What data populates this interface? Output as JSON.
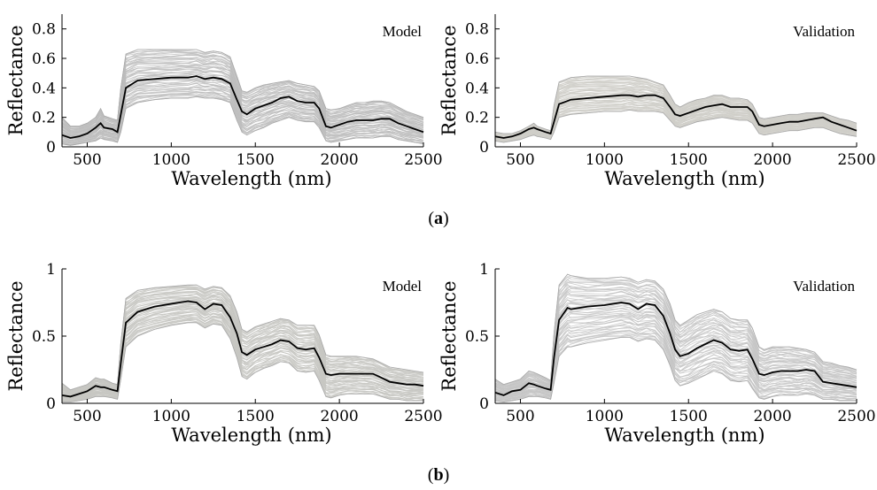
{
  "captions": {
    "a": "a",
    "b": "b"
  },
  "chart_data": [
    {
      "type": "line",
      "panel": "a",
      "title": "Model",
      "xlabel": "Wavelength (nm)",
      "ylabel": "Reflectance",
      "xlim": [
        350,
        2500
      ],
      "ylim": [
        0,
        0.9
      ],
      "xticks": [
        500,
        1000,
        1500,
        2000,
        2500
      ],
      "yticks": [
        0,
        0.2,
        0.4,
        0.6,
        0.8
      ],
      "ytick_labels": [
        "0",
        "0.2",
        "0.4",
        "0.6",
        "0.8"
      ],
      "band_color": "#bdbdbd",
      "band_opacity": 0.85,
      "mean_color": "#000000",
      "x": [
        350,
        400,
        450,
        500,
        550,
        580,
        600,
        650,
        680,
        700,
        730,
        800,
        900,
        1000,
        1100,
        1150,
        1200,
        1250,
        1300,
        1350,
        1390,
        1420,
        1450,
        1500,
        1550,
        1600,
        1650,
        1700,
        1750,
        1800,
        1850,
        1880,
        1920,
        1950,
        2000,
        2050,
        2100,
        2150,
        2200,
        2250,
        2300,
        2350,
        2400,
        2450,
        2500
      ],
      "series": [
        {
          "values": [
            0.08,
            0.06,
            0.07,
            0.09,
            0.13,
            0.16,
            0.13,
            0.12,
            0.1,
            0.22,
            0.4,
            0.45,
            0.46,
            0.47,
            0.47,
            0.48,
            0.46,
            0.47,
            0.46,
            0.43,
            0.32,
            0.24,
            0.22,
            0.26,
            0.28,
            0.3,
            0.33,
            0.34,
            0.31,
            0.3,
            0.3,
            0.26,
            0.14,
            0.13,
            0.15,
            0.17,
            0.18,
            0.18,
            0.18,
            0.19,
            0.19,
            0.16,
            0.14,
            0.12,
            0.1
          ]
        },
        {
          "values": [
            0.2,
            0.14,
            0.14,
            0.16,
            0.2,
            0.26,
            0.21,
            0.19,
            0.18,
            0.4,
            0.63,
            0.66,
            0.66,
            0.66,
            0.66,
            0.66,
            0.64,
            0.65,
            0.64,
            0.61,
            0.48,
            0.38,
            0.37,
            0.4,
            0.42,
            0.43,
            0.44,
            0.45,
            0.43,
            0.42,
            0.41,
            0.38,
            0.26,
            0.25,
            0.26,
            0.28,
            0.3,
            0.3,
            0.31,
            0.31,
            0.3,
            0.27,
            0.24,
            0.22,
            0.2
          ]
        },
        {
          "values": [
            0.02,
            0.01,
            0.02,
            0.03,
            0.04,
            0.06,
            0.05,
            0.04,
            0.03,
            0.1,
            0.26,
            0.3,
            0.32,
            0.33,
            0.33,
            0.34,
            0.33,
            0.33,
            0.32,
            0.3,
            0.18,
            0.1,
            0.08,
            0.11,
            0.13,
            0.16,
            0.18,
            0.2,
            0.18,
            0.17,
            0.17,
            0.13,
            0.04,
            0.03,
            0.04,
            0.05,
            0.06,
            0.06,
            0.06,
            0.07,
            0.07,
            0.05,
            0.04,
            0.03,
            0.02
          ]
        }
      ]
    },
    {
      "type": "line",
      "panel": "a",
      "title": "Validation",
      "xlabel": "Wavelength (nm)",
      "ylabel": "Reflectance",
      "xlim": [
        350,
        2500
      ],
      "ylim": [
        0,
        0.9
      ],
      "xticks": [
        500,
        1000,
        1500,
        2000,
        2500
      ],
      "yticks": [
        0,
        0.2,
        0.4,
        0.6,
        0.8
      ],
      "ytick_labels": [
        "0",
        "0.2",
        "0.4",
        "0.6",
        "0.8"
      ],
      "band_color": "#cfcec9",
      "band_opacity": 0.9,
      "mean_color": "#000000",
      "x": [
        350,
        400,
        450,
        500,
        550,
        580,
        600,
        650,
        680,
        700,
        730,
        800,
        900,
        1000,
        1100,
        1150,
        1200,
        1250,
        1300,
        1350,
        1390,
        1420,
        1450,
        1500,
        1550,
        1600,
        1650,
        1700,
        1750,
        1800,
        1850,
        1880,
        1920,
        1950,
        2000,
        2050,
        2100,
        2150,
        2200,
        2250,
        2300,
        2350,
        2400,
        2450,
        2500
      ],
      "series": [
        {
          "values": [
            0.07,
            0.06,
            0.07,
            0.09,
            0.12,
            0.13,
            0.12,
            0.1,
            0.09,
            0.17,
            0.29,
            0.32,
            0.33,
            0.34,
            0.35,
            0.35,
            0.34,
            0.35,
            0.35,
            0.33,
            0.27,
            0.22,
            0.21,
            0.23,
            0.25,
            0.27,
            0.28,
            0.29,
            0.27,
            0.27,
            0.27,
            0.24,
            0.15,
            0.14,
            0.15,
            0.16,
            0.17,
            0.17,
            0.18,
            0.19,
            0.2,
            0.17,
            0.15,
            0.13,
            0.11
          ]
        },
        {
          "values": [
            0.1,
            0.09,
            0.09,
            0.11,
            0.14,
            0.16,
            0.14,
            0.12,
            0.11,
            0.28,
            0.44,
            0.47,
            0.48,
            0.48,
            0.48,
            0.48,
            0.47,
            0.46,
            0.44,
            0.42,
            0.35,
            0.29,
            0.27,
            0.3,
            0.32,
            0.33,
            0.35,
            0.35,
            0.33,
            0.33,
            0.32,
            0.29,
            0.2,
            0.19,
            0.2,
            0.21,
            0.22,
            0.22,
            0.23,
            0.23,
            0.23,
            0.21,
            0.19,
            0.18,
            0.16
          ]
        },
        {
          "values": [
            0.04,
            0.03,
            0.04,
            0.05,
            0.07,
            0.08,
            0.07,
            0.06,
            0.05,
            0.1,
            0.2,
            0.22,
            0.23,
            0.24,
            0.24,
            0.25,
            0.24,
            0.24,
            0.24,
            0.23,
            0.18,
            0.14,
            0.13,
            0.15,
            0.17,
            0.18,
            0.19,
            0.2,
            0.19,
            0.18,
            0.18,
            0.16,
            0.09,
            0.08,
            0.09,
            0.1,
            0.11,
            0.11,
            0.12,
            0.13,
            0.13,
            0.11,
            0.09,
            0.08,
            0.07
          ]
        }
      ]
    },
    {
      "type": "line",
      "panel": "b",
      "title": "Model",
      "xlabel": "Wavelength (nm)",
      "ylabel": "Reflectance",
      "xlim": [
        350,
        2500
      ],
      "ylim": [
        0,
        1
      ],
      "xticks": [
        500,
        1000,
        1500,
        2000,
        2500
      ],
      "yticks": [
        0,
        0.5,
        1
      ],
      "ytick_labels": [
        "0",
        "0.5",
        "1"
      ],
      "band_color": "#c7c6c2",
      "band_opacity": 0.9,
      "mean_color": "#000000",
      "x": [
        350,
        400,
        450,
        500,
        550,
        580,
        600,
        650,
        680,
        700,
        730,
        800,
        900,
        1000,
        1100,
        1150,
        1200,
        1250,
        1300,
        1350,
        1390,
        1420,
        1450,
        1500,
        1550,
        1600,
        1650,
        1700,
        1750,
        1800,
        1850,
        1880,
        1920,
        1950,
        2000,
        2050,
        2100,
        2150,
        2200,
        2250,
        2300,
        2350,
        2400,
        2450,
        2500
      ],
      "series": [
        {
          "values": [
            0.06,
            0.05,
            0.07,
            0.09,
            0.13,
            0.12,
            0.12,
            0.1,
            0.09,
            0.3,
            0.6,
            0.68,
            0.72,
            0.74,
            0.76,
            0.75,
            0.7,
            0.74,
            0.73,
            0.64,
            0.52,
            0.38,
            0.36,
            0.4,
            0.42,
            0.44,
            0.47,
            0.46,
            0.41,
            0.4,
            0.41,
            0.34,
            0.22,
            0.21,
            0.22,
            0.22,
            0.22,
            0.22,
            0.22,
            0.19,
            0.16,
            0.15,
            0.14,
            0.14,
            0.13
          ]
        },
        {
          "values": [
            0.15,
            0.1,
            0.12,
            0.14,
            0.19,
            0.18,
            0.18,
            0.15,
            0.14,
            0.45,
            0.78,
            0.84,
            0.86,
            0.87,
            0.88,
            0.88,
            0.85,
            0.87,
            0.86,
            0.8,
            0.68,
            0.55,
            0.53,
            0.57,
            0.59,
            0.61,
            0.63,
            0.62,
            0.58,
            0.58,
            0.58,
            0.51,
            0.36,
            0.35,
            0.35,
            0.35,
            0.35,
            0.34,
            0.33,
            0.3,
            0.27,
            0.26,
            0.25,
            0.24,
            0.23
          ]
        },
        {
          "values": [
            0.01,
            0.01,
            0.02,
            0.03,
            0.05,
            0.05,
            0.05,
            0.04,
            0.03,
            0.18,
            0.42,
            0.5,
            0.55,
            0.58,
            0.6,
            0.6,
            0.56,
            0.59,
            0.58,
            0.48,
            0.34,
            0.2,
            0.18,
            0.23,
            0.26,
            0.28,
            0.31,
            0.3,
            0.24,
            0.23,
            0.24,
            0.17,
            0.05,
            0.04,
            0.06,
            0.07,
            0.07,
            0.07,
            0.07,
            0.05,
            0.03,
            0.03,
            0.02,
            0.02,
            0.02
          ]
        }
      ]
    },
    {
      "type": "line",
      "panel": "b",
      "title": "Validation",
      "xlabel": "Wavelength (nm)",
      "ylabel": "Reflectance",
      "xlim": [
        350,
        2500
      ],
      "ylim": [
        0,
        1
      ],
      "xticks": [
        500,
        1000,
        1500,
        2000,
        2500
      ],
      "yticks": [
        0,
        0.5,
        1
      ],
      "ytick_labels": [
        "0",
        "0.5",
        "1"
      ],
      "band_color": "#c4c4c4",
      "band_opacity": 0.85,
      "mean_color": "#000000",
      "x": [
        350,
        400,
        450,
        500,
        550,
        580,
        600,
        650,
        680,
        700,
        730,
        780,
        800,
        900,
        1000,
        1100,
        1150,
        1200,
        1250,
        1300,
        1350,
        1390,
        1420,
        1450,
        1500,
        1550,
        1600,
        1650,
        1700,
        1750,
        1800,
        1850,
        1880,
        1920,
        1950,
        2000,
        2050,
        2100,
        2150,
        2200,
        2250,
        2300,
        2350,
        2400,
        2450,
        2500
      ],
      "series": [
        {
          "values": [
            0.08,
            0.06,
            0.09,
            0.1,
            0.15,
            0.14,
            0.13,
            0.11,
            0.1,
            0.34,
            0.62,
            0.71,
            0.7,
            0.72,
            0.73,
            0.75,
            0.74,
            0.7,
            0.74,
            0.73,
            0.65,
            0.52,
            0.4,
            0.35,
            0.37,
            0.41,
            0.44,
            0.47,
            0.45,
            0.4,
            0.39,
            0.4,
            0.33,
            0.22,
            0.21,
            0.23,
            0.24,
            0.24,
            0.24,
            0.25,
            0.24,
            0.16,
            0.15,
            0.14,
            0.13,
            0.12
          ]
        },
        {
          "values": [
            0.18,
            0.14,
            0.16,
            0.18,
            0.24,
            0.23,
            0.22,
            0.19,
            0.17,
            0.52,
            0.88,
            0.96,
            0.95,
            0.93,
            0.93,
            0.94,
            0.93,
            0.9,
            0.92,
            0.91,
            0.85,
            0.74,
            0.62,
            0.58,
            0.62,
            0.66,
            0.68,
            0.7,
            0.68,
            0.63,
            0.62,
            0.62,
            0.56,
            0.42,
            0.4,
            0.42,
            0.42,
            0.42,
            0.41,
            0.4,
            0.38,
            0.31,
            0.3,
            0.28,
            0.27,
            0.25
          ]
        },
        {
          "values": [
            0.02,
            0.01,
            0.02,
            0.03,
            0.05,
            0.05,
            0.05,
            0.04,
            0.03,
            0.15,
            0.35,
            0.42,
            0.42,
            0.45,
            0.47,
            0.49,
            0.49,
            0.46,
            0.48,
            0.47,
            0.4,
            0.28,
            0.17,
            0.13,
            0.15,
            0.18,
            0.21,
            0.24,
            0.22,
            0.17,
            0.16,
            0.17,
            0.11,
            0.04,
            0.03,
            0.05,
            0.06,
            0.06,
            0.06,
            0.07,
            0.06,
            0.03,
            0.03,
            0.02,
            0.02,
            0.02
          ]
        }
      ]
    }
  ]
}
